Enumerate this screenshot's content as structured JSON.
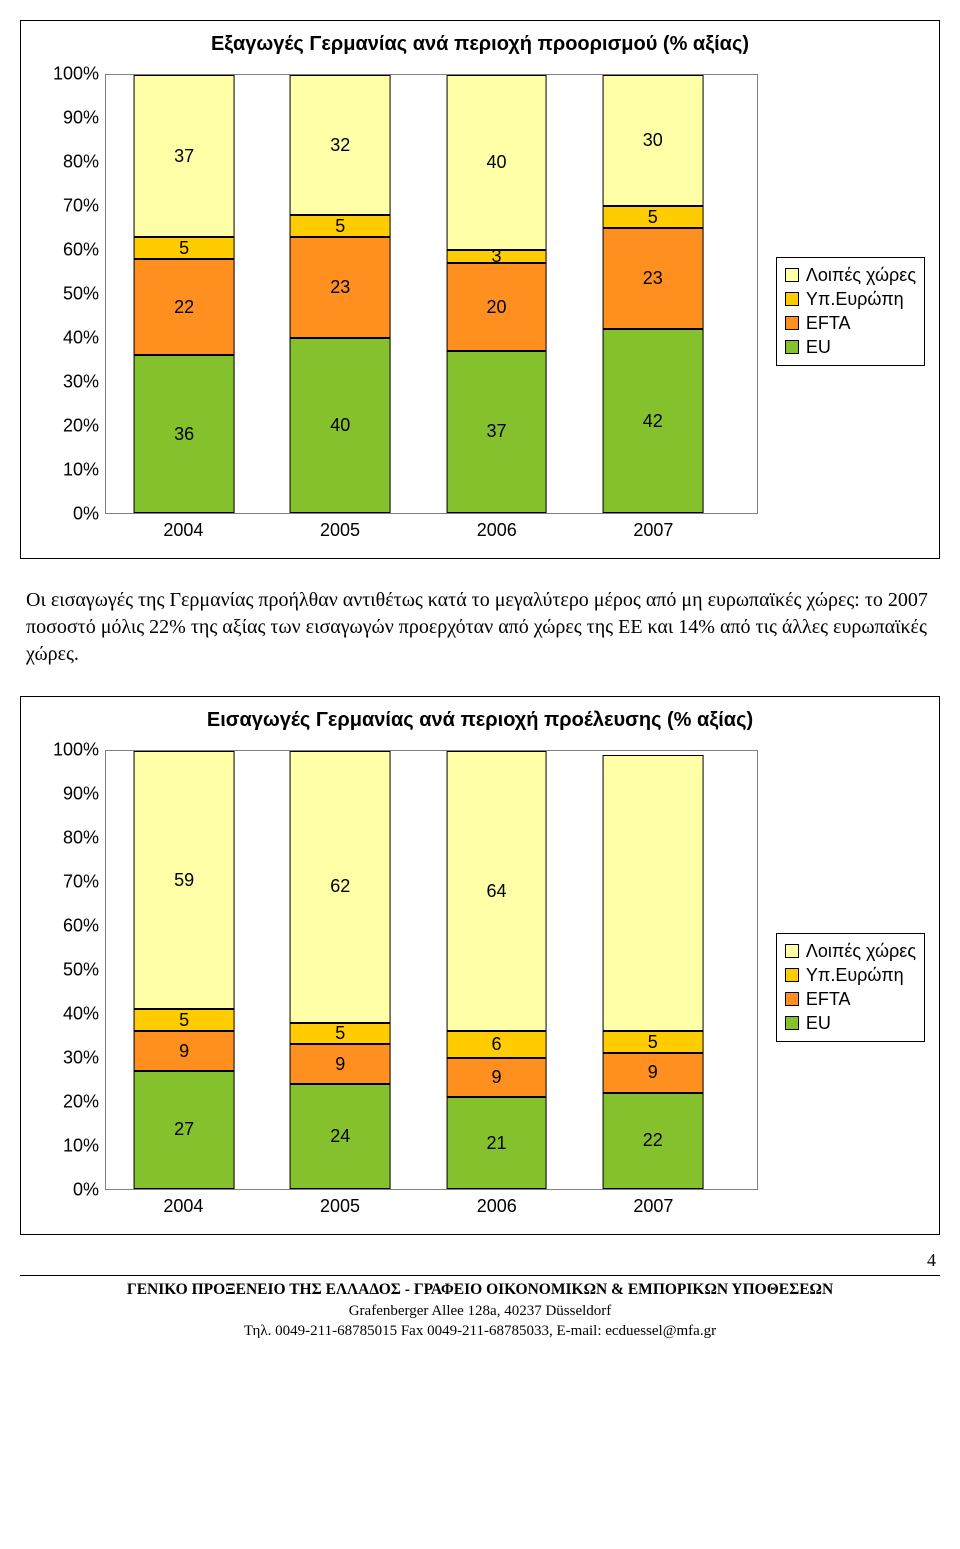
{
  "chart1": {
    "title": "Εξαγωγές Γερμανίας ανά περιοχή προορισμού (% αξίας)",
    "type": "stacked-bar-100",
    "categories": [
      "2004",
      "2005",
      "2006",
      "2007"
    ],
    "y_ticks": [
      "0%",
      "10%",
      "20%",
      "30%",
      "40%",
      "50%",
      "60%",
      "70%",
      "80%",
      "90%",
      "100%"
    ],
    "series_order": [
      "EU",
      "EFTA",
      "YpEurope",
      "Other"
    ],
    "series_labels": {
      "Other": "Λοιπές χώρες",
      "YpEurope": "Υπ.Ευρώπη",
      "EFTA": "EFTA",
      "EU": "EU"
    },
    "colors": {
      "Other": "#ffffa7",
      "YpEurope": "#ffcc00",
      "EFTA": "#ff8f1f",
      "EU": "#84c12c"
    },
    "data": {
      "2004": {
        "EU": 36,
        "EFTA": 22,
        "YpEurope": 5,
        "Other": 37
      },
      "2005": {
        "EU": 40,
        "EFTA": 23,
        "YpEurope": 5,
        "Other": 32
      },
      "2006": {
        "EU": 37,
        "EFTA": 20,
        "YpEurope": 3,
        "Other": 40
      },
      "2007": {
        "EU": 42,
        "EFTA": 23,
        "YpEurope": 5,
        "Other": 30
      }
    },
    "bar_width_pct": 15.5,
    "bar_positions_pct": [
      12,
      36,
      60,
      84
    ]
  },
  "paragraph": "Οι εισαγωγές της Γερμανίας προήλθαν αντιθέτως κατά το μεγαλύτερο μέρος από μη ευρωπαϊκές χώρες: το 2007 ποσοστό μόλις 22% της αξίας των εισαγωγών προερχόταν από χώρες της ΕΕ και 14% από τις άλλες ευρωπαϊκές χώρες.",
  "chart2": {
    "title": "Εισαγωγές Γερμανίας ανά περιοχή προέλευσης (% αξίας)",
    "type": "stacked-bar-100",
    "categories": [
      "2004",
      "2005",
      "2006",
      "2007"
    ],
    "y_ticks": [
      "0%",
      "10%",
      "20%",
      "30%",
      "40%",
      "50%",
      "60%",
      "70%",
      "80%",
      "90%",
      "100%"
    ],
    "series_order": [
      "EU",
      "EFTA",
      "YpEurope",
      "Other"
    ],
    "series_labels": {
      "Other": "Λοιπές χώρες",
      "YpEurope": "Υπ.Ευρώπη",
      "EFTA": "EFTA",
      "EU": "EU"
    },
    "colors": {
      "Other": "#ffffa7",
      "YpEurope": "#ffcc00",
      "EFTA": "#ff8f1f",
      "EU": "#84c12c"
    },
    "data": {
      "2004": {
        "EU": 27,
        "EFTA": 9,
        "YpEurope": 5,
        "Other": 59
      },
      "2005": {
        "EU": 24,
        "EFTA": 9,
        "YpEurope": 5,
        "Other": 62
      },
      "2006": {
        "EU": 21,
        "EFTA": 9,
        "YpEurope": 6,
        "Other": 64
      },
      "2007": {
        "EU": 22,
        "EFTA": 9,
        "YpEurope": 5,
        "Other": 63
      }
    },
    "bar_width_pct": 15.5,
    "bar_positions_pct": [
      12,
      36,
      60,
      84
    ],
    "hide_labels_for": {
      "2007": [
        "Other"
      ]
    }
  },
  "legend_order": [
    "Other",
    "YpEurope",
    "EFTA",
    "EU"
  ],
  "footer": {
    "page": "4",
    "line1_bold": "ΓΕΝΙΚΟ ΠΡΟΞΕΝΕΙΟ ΤΗΣ ΕΛΛΑΔΟΣ - ΓΡΑΦΕΙΟ ΟΙΚΟΝΟΜΙΚΩΝ &  ΕΜΠΟΡΙΚΩΝ ΥΠΟΘΕΣΕΩΝ",
    "line2": "Grafenberger Allee 128a, 40237 Düsseldorf",
    "line3": "Τηλ. 0049-211-68785015 Fax 0049-211-68785033, E-mail: ecduessel@mfa.gr"
  }
}
